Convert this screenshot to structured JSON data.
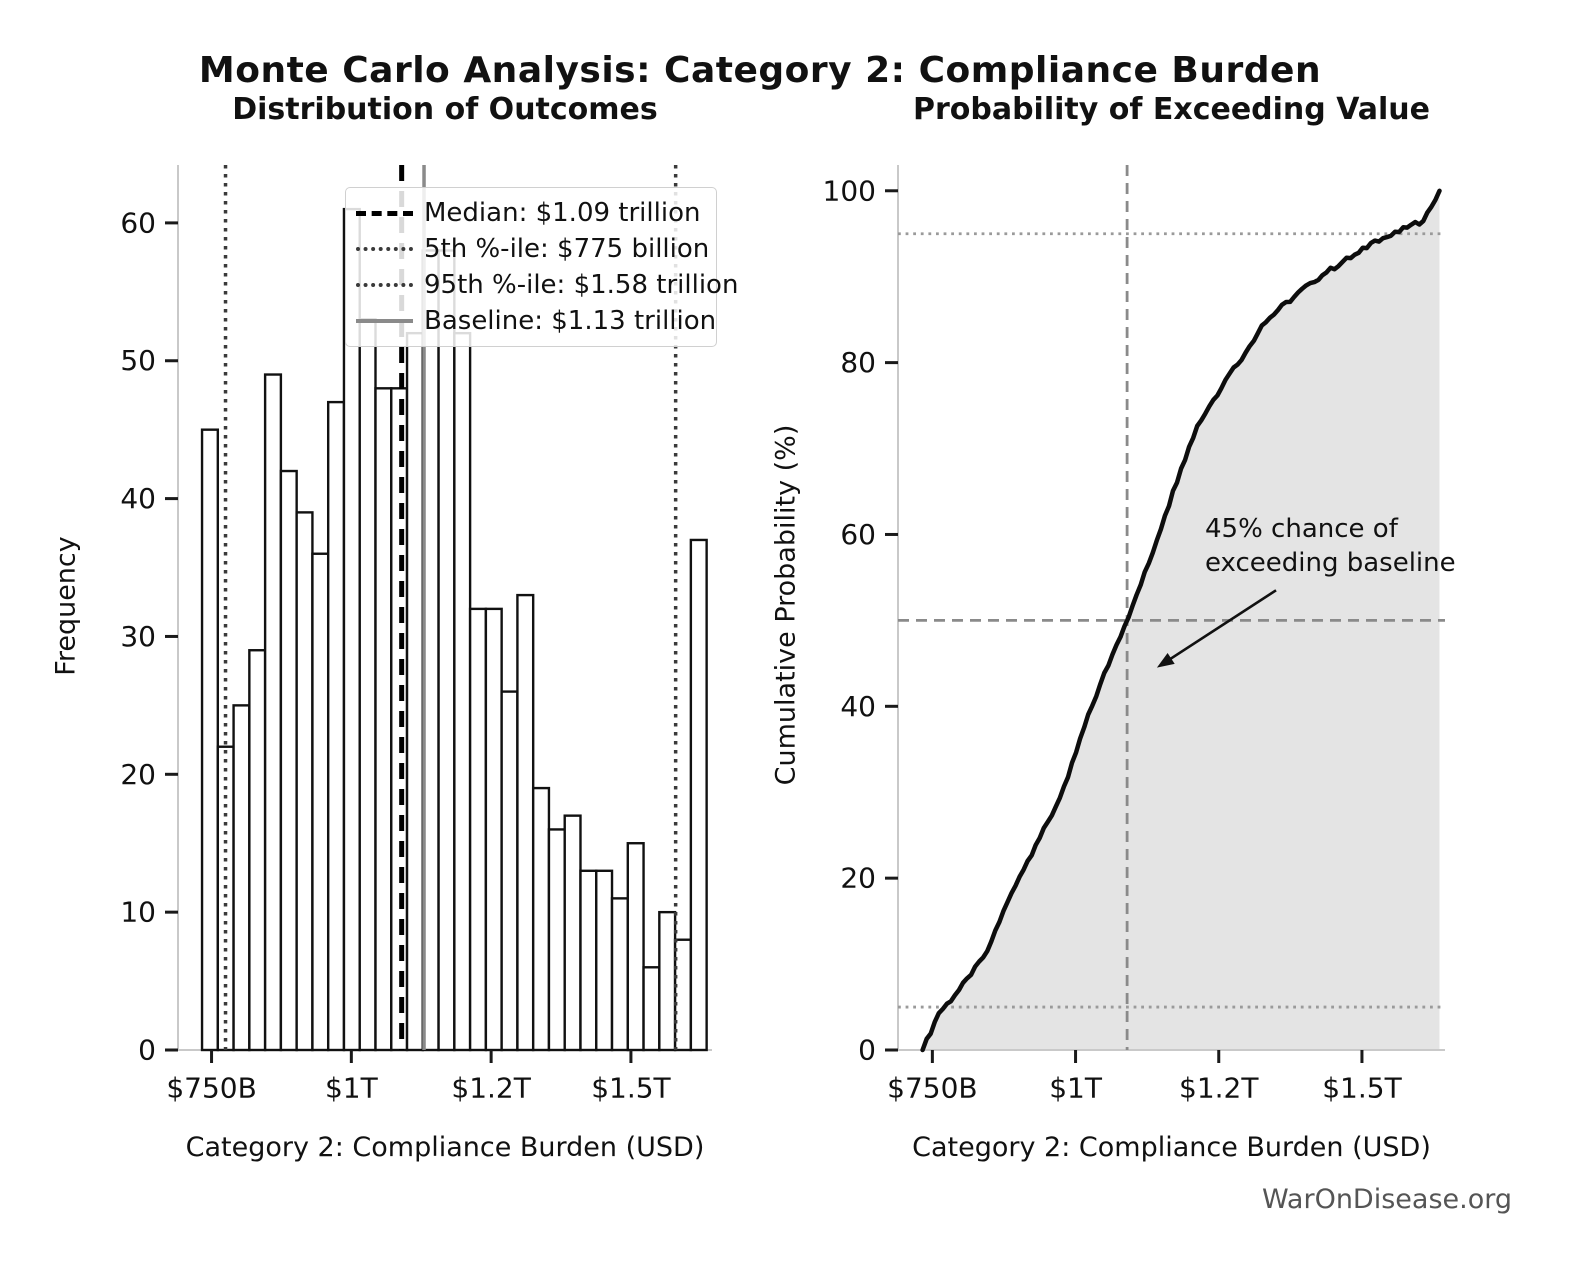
{
  "page": {
    "main_title": "Monte Carlo Analysis: Category 2: Compliance Burden",
    "footer": "WarOnDisease.org"
  },
  "colors": {
    "bar_fill": "#ffffff",
    "bar_edge": "#111111",
    "median_line": "#000000",
    "percentile_line": "#3a3a3a",
    "baseline_line": "#8a8a8a",
    "cdf_line": "#0d0d0d",
    "cdf_fill": "#e4e4e4",
    "crosshair": "#8a8a8a",
    "ref_dotted": "#9a9a9a",
    "spine": "#c9c9c9",
    "tick": "#1a1a1a",
    "text": "#111111",
    "footer_text": "#555555"
  },
  "legend": {
    "items": [
      {
        "label": "Median: $1.09 trillion",
        "style": "dashed-black"
      },
      {
        "label": "5th %-ile: $775 billion",
        "style": "dotted-dark"
      },
      {
        "label": "95th %-ile: $1.58 trillion",
        "style": "dotted-dark"
      },
      {
        "label": "Baseline: $1.13 trillion",
        "style": "solid-gray"
      }
    ]
  },
  "annotation": {
    "text": "45% chance of\nexceeding baseline"
  },
  "chart_data": [
    {
      "type": "bar",
      "subtype": "histogram",
      "title": "Distribution of Outcomes",
      "xlabel": "Category 2: Compliance Burden (USD)",
      "ylabel": "Frequency",
      "units": "billions USD",
      "bin_start": 733,
      "bin_width": 28.2,
      "counts": [
        45,
        22,
        25,
        29,
        49,
        42,
        39,
        36,
        47,
        61,
        53,
        48,
        48,
        52,
        58,
        58,
        52,
        32,
        32,
        26,
        33,
        19,
        16,
        17,
        13,
        13,
        11,
        15,
        6,
        10,
        8,
        37
      ],
      "xlim": [
        690,
        1645
      ],
      "ylim": [
        0,
        64.2
      ],
      "xticks": [
        {
          "value": 750,
          "label": "$750B"
        },
        {
          "value": 1000,
          "label": "$1T"
        },
        {
          "value": 1250,
          "label": "$1.2T"
        },
        {
          "value": 1500,
          "label": "$1.5T"
        }
      ],
      "yticks": [
        0,
        10,
        20,
        30,
        40,
        50,
        60
      ],
      "grid": false,
      "legend_position": "upper-center",
      "markers": [
        {
          "name": "pct5",
          "value": 775,
          "label": "5th %-ile: $775 billion",
          "style": "dotted-dark"
        },
        {
          "name": "pct95",
          "value": 1580,
          "label": "95th %-ile: $1.58 trillion",
          "style": "dotted-dark"
        },
        {
          "name": "median",
          "value": 1090,
          "label": "Median: $1.09 trillion",
          "style": "dashed-black"
        },
        {
          "name": "baseline",
          "value": 1130,
          "label": "Baseline: $1.13 trillion",
          "style": "solid-gray"
        }
      ]
    },
    {
      "type": "line",
      "subtype": "empirical-cdf",
      "title": "Probability of Exceeding Value",
      "xlabel": "Category 2: Compliance Burden (USD)",
      "ylabel": "Cumulative Probability (%)",
      "units": "billions USD",
      "bin_start": 733,
      "bin_width": 28.2,
      "cumulative_pct": [
        0,
        4.28,
        6.37,
        8.75,
        11.5,
        16.16,
        20.15,
        23.86,
        27.28,
        31.75,
        37.55,
        42.59,
        47.15,
        51.71,
        56.65,
        62.17,
        67.68,
        72.62,
        75.67,
        78.71,
        81.18,
        84.32,
        86.12,
        87.64,
        89.26,
        90.49,
        91.73,
        92.78,
        94.2,
        94.77,
        95.72,
        96.48,
        100
      ],
      "xlim": [
        690,
        1645
      ],
      "ylim": [
        0,
        103
      ],
      "xticks": [
        {
          "value": 750,
          "label": "$750B"
        },
        {
          "value": 1000,
          "label": "$1T"
        },
        {
          "value": 1250,
          "label": "$1.2T"
        },
        {
          "value": 1500,
          "label": "$1.5T"
        }
      ],
      "yticks": [
        0,
        20,
        40,
        60,
        80,
        100
      ],
      "grid": false,
      "fill_under_curve": true,
      "crosshair": {
        "x": 1090,
        "y": 50
      },
      "reference_lines_pct": [
        5,
        95
      ],
      "annotation": {
        "text": "45% chance of\nexceeding baseline",
        "arrow_from": [
          1350,
          53.5
        ],
        "arrow_to": [
          1142,
          44.5
        ]
      }
    }
  ]
}
